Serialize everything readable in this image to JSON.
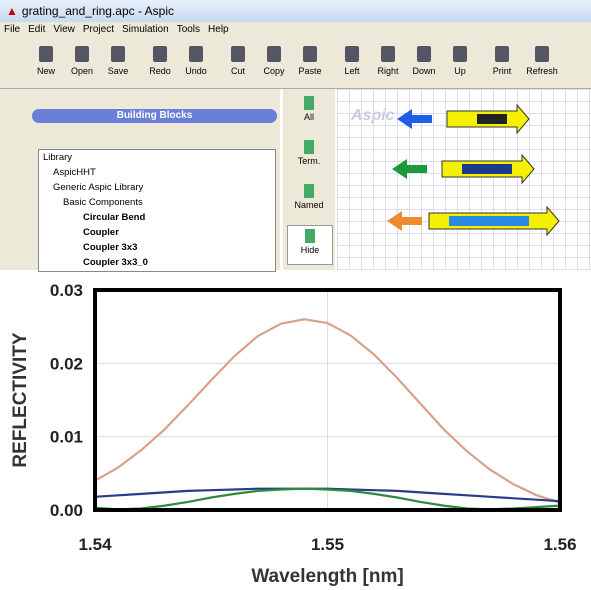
{
  "window": {
    "title": "grating_and_ring.apc - Aspic"
  },
  "menu": [
    "File",
    "Edit",
    "View",
    "Project",
    "Simulation",
    "Tools",
    "Help"
  ],
  "toolbar": [
    "New",
    "Open",
    "Save",
    "Redo",
    "Undo",
    "Cut",
    "Copy",
    "Paste",
    "Left",
    "Right",
    "Down",
    "Up",
    "Print",
    "Refresh"
  ],
  "panel": {
    "title": "Building Blocks",
    "tree": [
      "Library",
      "AspicHHT",
      "Generic Aspic Library",
      "Basic Components",
      "Circular Bend",
      "Coupler",
      "Coupler 3x3",
      "Coupler 3x3_0"
    ]
  },
  "side_buttons": [
    "All",
    "Term.",
    "Named",
    "Hide"
  ],
  "canvas_logo": "Aspic",
  "chart_data": {
    "type": "line",
    "xlabel": "Wavelength [nm]",
    "ylabel": "REFLECTIVITY",
    "x": [
      1.54,
      1.541,
      1.542,
      1.543,
      1.544,
      1.545,
      1.546,
      1.547,
      1.548,
      1.549,
      1.55,
      1.551,
      1.552,
      1.553,
      1.554,
      1.555,
      1.556,
      1.557,
      1.558,
      1.559,
      1.56
    ],
    "series": [
      {
        "color": "#d9a08a",
        "values": [
          0.004,
          0.0058,
          0.0082,
          0.011,
          0.0143,
          0.0177,
          0.021,
          0.0237,
          0.0254,
          0.026,
          0.0255,
          0.0238,
          0.0212,
          0.018,
          0.0145,
          0.011,
          0.008,
          0.0055,
          0.0035,
          0.002,
          0.001
        ]
      },
      {
        "color": "#2a3a8c",
        "values": [
          0.0018,
          0.002,
          0.0022,
          0.0024,
          0.0026,
          0.0027,
          0.0028,
          0.0029,
          0.0029,
          0.0029,
          0.0029,
          0.0028,
          0.0027,
          0.0026,
          0.0024,
          0.0022,
          0.002,
          0.0018,
          0.0016,
          0.0014,
          0.0012
        ]
      },
      {
        "color": "#2e8b3a",
        "values": [
          0.0003,
          0.0001,
          0.0002,
          0.0006,
          0.0011,
          0.0017,
          0.0022,
          0.0026,
          0.0028,
          0.0029,
          0.0028,
          0.0026,
          0.0022,
          0.0017,
          0.0011,
          0.0006,
          0.0002,
          0.0001,
          0.0002,
          0.0004,
          0.0006
        ]
      }
    ],
    "xlim": [
      1.54,
      1.56
    ],
    "ylim": [
      0,
      0.03
    ],
    "xticks": [
      1.54,
      1.55,
      1.56
    ],
    "yticks": [
      {
        "value": 0,
        "label": "0.00"
      },
      0.01,
      0.02,
      0.03
    ],
    "grid": true
  }
}
